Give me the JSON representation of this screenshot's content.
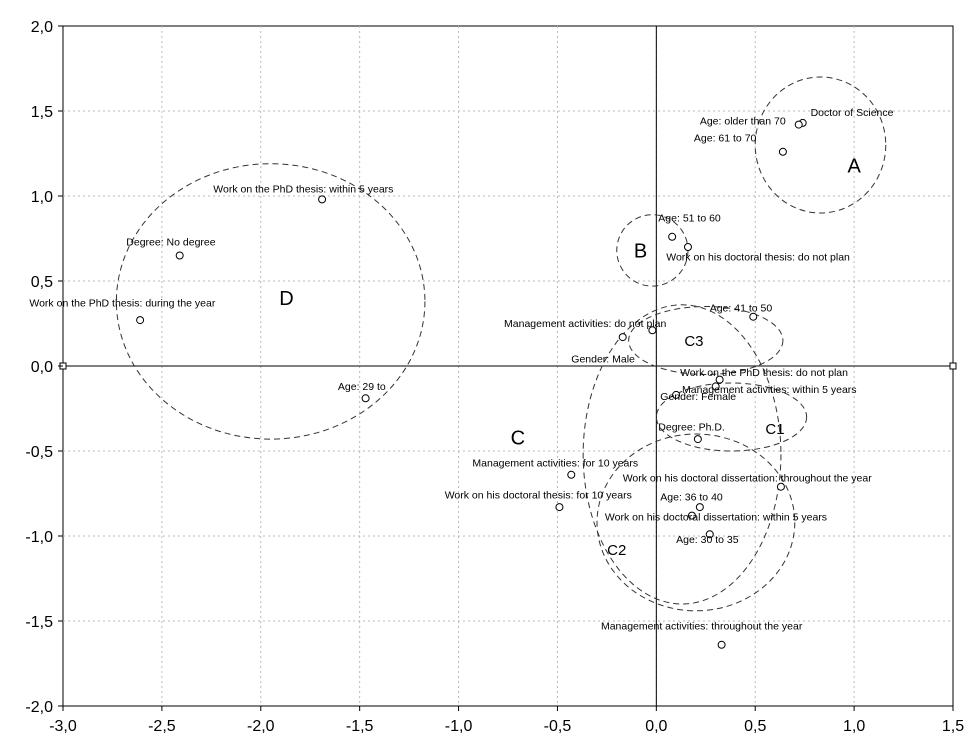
{
  "chart_data": {
    "type": "scatter",
    "xlim": [
      -3.0,
      1.5
    ],
    "ylim": [
      -2.0,
      2.0
    ],
    "x_ticks": [
      "-3,0",
      "-2,5",
      "-2,0",
      "-1,5",
      "-1,0",
      "-0,5",
      "0,0",
      "0,5",
      "1,0",
      "1,5"
    ],
    "y_ticks": [
      "2,0",
      "1,5",
      "1,0",
      "0,5",
      "0,0",
      "-0,5",
      "-1,0",
      "-1,5",
      "-2,0"
    ],
    "grid": true,
    "points": [
      {
        "label": "Doctor of Science",
        "x": 0.74,
        "y": 1.43
      },
      {
        "label": "Age: older than 70",
        "x": 0.72,
        "y": 1.42
      },
      {
        "label": "Age: 61 to 70",
        "x": 0.64,
        "y": 1.26
      },
      {
        "label": "Age: 51 to 60",
        "x": 0.08,
        "y": 0.76
      },
      {
        "label": "Work on his doctoral thesis: do not plan",
        "x": 0.16,
        "y": 0.7
      },
      {
        "label": "Age: 41 to 50",
        "x": 0.49,
        "y": 0.29
      },
      {
        "label": "Management activities: do not plan",
        "x": -0.02,
        "y": 0.21
      },
      {
        "label": "Gender: Male",
        "x": -0.17,
        "y": 0.17
      },
      {
        "label": "Work on the PhD thesis: do not plan",
        "x": 0.32,
        "y": -0.08
      },
      {
        "label": "Management activities: within 5 years",
        "x": 0.3,
        "y": -0.12
      },
      {
        "label": "Gender: Female",
        "x": 0.1,
        "y": -0.17
      },
      {
        "label": "Degree: Ph.D.",
        "x": 0.21,
        "y": -0.43
      },
      {
        "label": "Management activities: for 10 years",
        "x": -0.43,
        "y": -0.64
      },
      {
        "label": "Work on his doctoral dissertation: throughout the year",
        "x": 0.63,
        "y": -0.71
      },
      {
        "label": "Work on his doctoral thesis: for 10 years",
        "x": -0.49,
        "y": -0.83
      },
      {
        "label": "Age: 36 to 40",
        "x": 0.22,
        "y": -0.83
      },
      {
        "label": "Work on his doctoral dissertation: within 5 years",
        "x": 0.18,
        "y": -0.88
      },
      {
        "label": "Age: 30 to 35",
        "x": 0.27,
        "y": -0.99
      },
      {
        "label": "Management activities: throughout the year",
        "x": 0.33,
        "y": -1.64
      },
      {
        "label": "Work on the PhD thesis: within 5 years",
        "x": -1.69,
        "y": 0.98
      },
      {
        "label": "Degree: No degree",
        "x": -2.41,
        "y": 0.65
      },
      {
        "label": "Work on the PhD thesis: during the year",
        "x": -2.61,
        "y": 0.27
      },
      {
        "label": "Age: 29 to",
        "x": -1.47,
        "y": -0.19
      }
    ],
    "clusters": [
      {
        "label": "A",
        "cx": 0.83,
        "cy": 1.3,
        "rx": 0.33,
        "ry": 0.4
      },
      {
        "label": "B",
        "cx": -0.02,
        "cy": 0.68,
        "rx": 0.18,
        "ry": 0.21
      },
      {
        "label": "C",
        "cx": 0.13,
        "cy": -0.52,
        "rx": 0.5,
        "ry": 0.88
      },
      {
        "label": "C1",
        "cx": 0.38,
        "cy": -0.3,
        "rx": 0.38,
        "ry": 0.2
      },
      {
        "label": "C2",
        "cx": 0.2,
        "cy": -0.92,
        "rx": 0.5,
        "ry": 0.52
      },
      {
        "label": "C3",
        "cx": 0.25,
        "cy": 0.15,
        "rx": 0.39,
        "ry": 0.2
      },
      {
        "label": "D",
        "cx": -1.95,
        "cy": 0.38,
        "rx": 0.78,
        "ry": 0.81
      }
    ]
  }
}
